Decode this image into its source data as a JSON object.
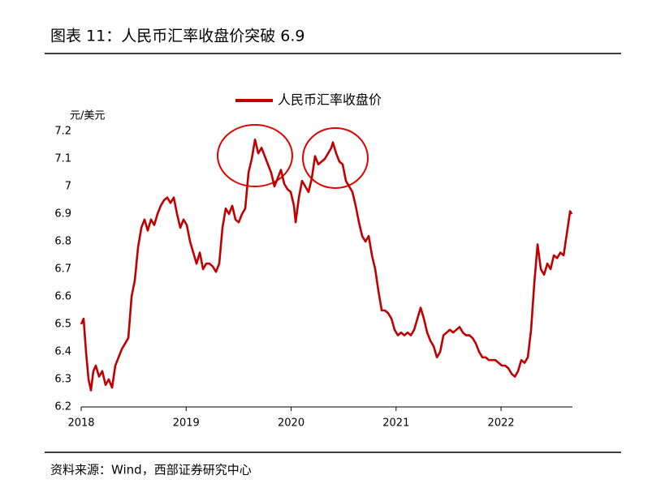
{
  "chart_data": {
    "type": "line",
    "title": "图表 11：人民币汇率收盘价突破 6.9",
    "y_label": "元/美元",
    "source": "资料来源：Wind，西部证券研究中心",
    "x": [
      2018.0,
      2018.023,
      2018.046,
      2018.07,
      2018.093,
      2018.116,
      2018.139,
      2018.17,
      2018.201,
      2018.232,
      2018.263,
      2018.294,
      2018.325,
      2018.356,
      2018.387,
      2018.418,
      2018.449,
      2018.48,
      2018.511,
      2018.542,
      2018.573,
      2018.603,
      2018.634,
      2018.665,
      2018.696,
      2018.727,
      2018.758,
      2018.789,
      2018.82,
      2018.851,
      2018.882,
      2018.913,
      2018.944,
      2018.975,
      2019.006,
      2019.037,
      2019.068,
      2019.099,
      2019.13,
      2019.161,
      2019.191,
      2019.222,
      2019.253,
      2019.284,
      2019.315,
      2019.346,
      2019.377,
      2019.408,
      2019.439,
      2019.47,
      2019.501,
      2019.532,
      2019.563,
      2019.594,
      2019.625,
      2019.656,
      2019.687,
      2019.718,
      2019.749,
      2019.779,
      2019.81,
      2019.841,
      2019.872,
      2019.903,
      2019.934,
      2019.965,
      2019.996,
      2020.027,
      2020.043,
      2020.074,
      2020.104,
      2020.135,
      2020.166,
      2020.197,
      2020.228,
      2020.259,
      2020.29,
      2020.321,
      2020.352,
      2020.383,
      2020.398,
      2020.429,
      2020.46,
      2020.491,
      2020.522,
      2020.553,
      2020.584,
      2020.615,
      2020.646,
      2020.677,
      2020.708,
      2020.739,
      2020.77,
      2020.801,
      2020.832,
      2020.863,
      2020.894,
      2020.925,
      2020.956,
      2020.986,
      2021.017,
      2021.048,
      2021.079,
      2021.11,
      2021.141,
      2021.172,
      2021.203,
      2021.234,
      2021.265,
      2021.296,
      2021.327,
      2021.358,
      2021.389,
      2021.42,
      2021.451,
      2021.482,
      2021.513,
      2021.544,
      2021.574,
      2021.605,
      2021.636,
      2021.667,
      2021.698,
      2021.729,
      2021.76,
      2021.791,
      2021.822,
      2021.853,
      2021.884,
      2021.915,
      2021.946,
      2021.977,
      2022.008,
      2022.039,
      2022.07,
      2022.101,
      2022.132,
      2022.162,
      2022.193,
      2022.224,
      2022.255,
      2022.286,
      2022.317,
      2022.348,
      2022.379,
      2022.41,
      2022.441,
      2022.472,
      2022.503,
      2022.534,
      2022.565,
      2022.596,
      2022.627,
      2022.658,
      2022.673
    ],
    "series": [
      {
        "name": "人民币汇率收盘价",
        "color": "#c00000",
        "values": [
          6.5,
          6.52,
          6.4,
          6.3,
          6.26,
          6.33,
          6.35,
          6.31,
          6.33,
          6.28,
          6.3,
          6.27,
          6.35,
          6.38,
          6.41,
          6.43,
          6.45,
          6.6,
          6.66,
          6.78,
          6.85,
          6.88,
          6.84,
          6.88,
          6.86,
          6.9,
          6.93,
          6.95,
          6.96,
          6.94,
          6.96,
          6.9,
          6.85,
          6.88,
          6.86,
          6.8,
          6.76,
          6.72,
          6.76,
          6.7,
          6.72,
          6.72,
          6.71,
          6.69,
          6.72,
          6.85,
          6.92,
          6.9,
          6.93,
          6.88,
          6.87,
          6.9,
          6.92,
          7.05,
          7.1,
          7.17,
          7.12,
          7.14,
          7.11,
          7.08,
          7.05,
          7.0,
          7.03,
          7.06,
          7.01,
          6.99,
          6.98,
          6.93,
          6.87,
          6.96,
          7.02,
          7.0,
          6.98,
          7.03,
          7.11,
          7.08,
          7.09,
          7.1,
          7.12,
          7.14,
          7.16,
          7.12,
          7.09,
          7.08,
          7.02,
          7.0,
          6.98,
          6.93,
          6.87,
          6.82,
          6.8,
          6.82,
          6.75,
          6.7,
          6.62,
          6.55,
          6.55,
          6.54,
          6.52,
          6.48,
          6.46,
          6.47,
          6.46,
          6.47,
          6.46,
          6.48,
          6.52,
          6.56,
          6.52,
          6.47,
          6.44,
          6.42,
          6.38,
          6.4,
          6.46,
          6.47,
          6.48,
          6.47,
          6.48,
          6.49,
          6.47,
          6.46,
          6.46,
          6.45,
          6.43,
          6.4,
          6.38,
          6.38,
          6.37,
          6.37,
          6.37,
          6.36,
          6.35,
          6.35,
          6.34,
          6.32,
          6.31,
          6.33,
          6.37,
          6.36,
          6.38,
          6.48,
          6.65,
          6.79,
          6.7,
          6.68,
          6.72,
          6.7,
          6.75,
          6.74,
          6.76,
          6.75,
          6.83,
          6.91,
          6.9
        ]
      }
    ],
    "xlim": [
      2018,
      2022.68
    ],
    "xticks": [
      2018,
      2019,
      2020,
      2021,
      2022
    ],
    "ylim": [
      6.2,
      7.2
    ],
    "yticks": [
      6.2,
      6.3,
      6.4,
      6.5,
      6.6,
      6.7,
      6.8,
      6.9,
      7,
      7.1,
      7.2
    ],
    "grid": false,
    "legend": "top"
  }
}
